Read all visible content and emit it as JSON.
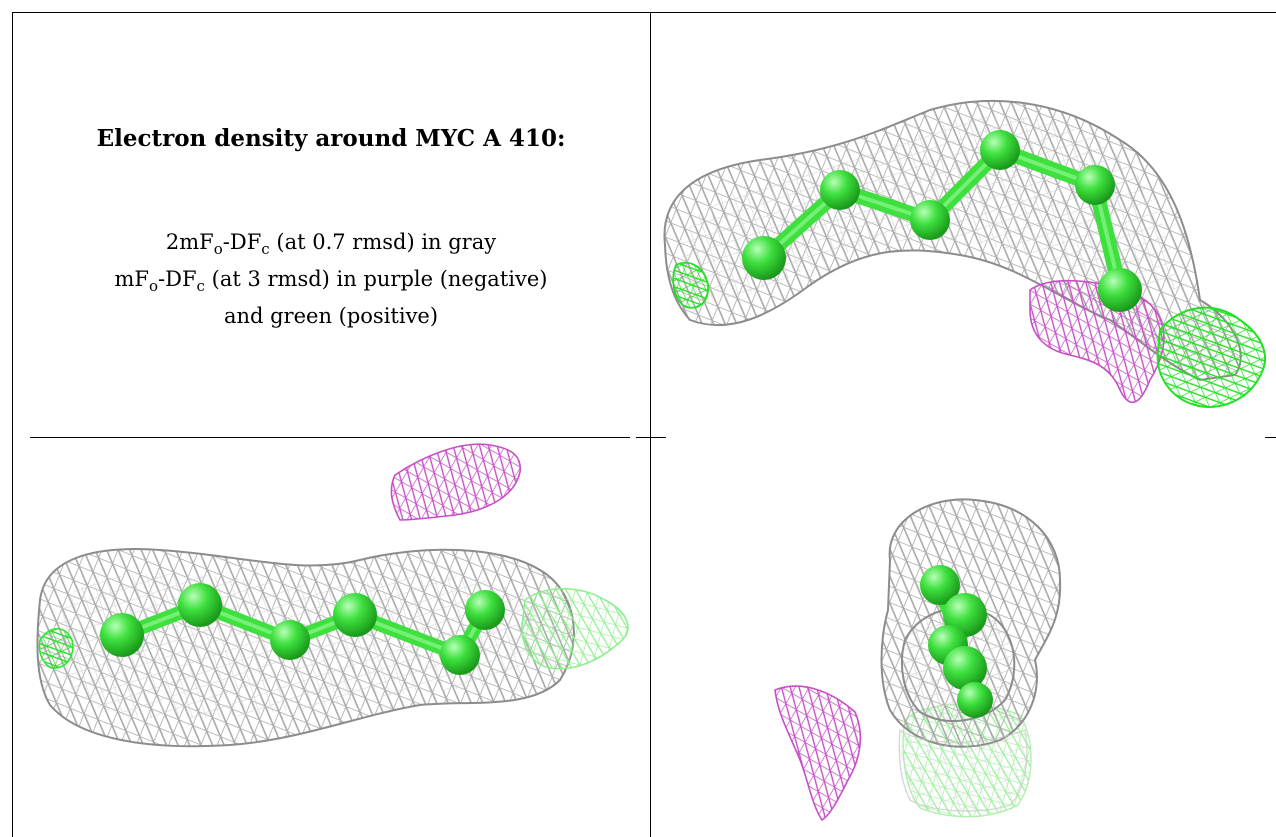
{
  "figure": {
    "title": "Electron density around MYC A 410:",
    "legend": {
      "line1": {
        "prefix": "2mF",
        "sub1": "o",
        "mid": "-DF",
        "sub2": "c",
        "suffix": " (at 0.7 rmsd) in gray"
      },
      "line2": {
        "prefix": "mF",
        "sub1": "o",
        "mid": "-DF",
        "sub2": "c",
        "suffix": " (at 3 rmsd) in purple (negative)"
      },
      "line3": "and green (positive)"
    },
    "colors": {
      "two_fo_fc_map": "#9a9a9a",
      "negative_difference": "#c64fc6",
      "positive_difference": "#33e633",
      "ligand": "#3ee03e"
    },
    "panels": [
      "view-1",
      "view-2",
      "view-3"
    ]
  }
}
